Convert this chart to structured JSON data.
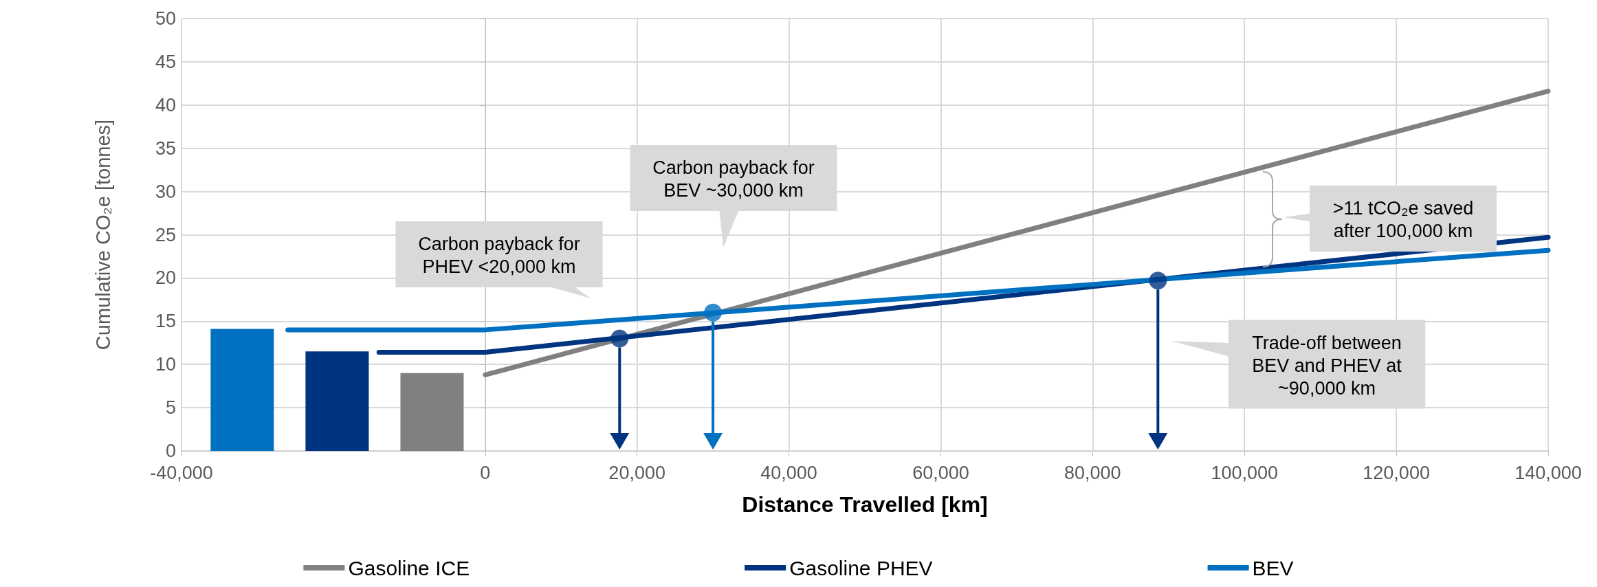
{
  "chart_data": {
    "type": "line",
    "xlabel": "Distance Travelled [km]",
    "ylabel": "Cumulative CO₂e [tonnes]",
    "xlim": [
      -40000,
      140000
    ],
    "xticks": [
      {
        "value": -40000,
        "label": "-40,000"
      },
      {
        "value": 0,
        "label": "0"
      },
      {
        "value": 20000,
        "label": "20,000"
      },
      {
        "value": 40000,
        "label": "40,000"
      },
      {
        "value": 60000,
        "label": "60,000"
      },
      {
        "value": 80000,
        "label": "80,000"
      },
      {
        "value": 100000,
        "label": "100,000"
      },
      {
        "value": 120000,
        "label": "120,000"
      },
      {
        "value": 140000,
        "label": "140,000"
      }
    ],
    "ylim": [
      0,
      50
    ],
    "yticks": [
      0,
      5,
      10,
      15,
      20,
      25,
      30,
      35,
      40,
      45,
      50
    ],
    "grid": true,
    "legend": "bottom",
    "series": [
      {
        "name": "Gasoline ICE",
        "color": "#808080",
        "x": [
          0,
          140000
        ],
        "values": [
          8.8,
          41.6
        ]
      },
      {
        "name": "Gasoline PHEV",
        "color": "#003380",
        "x": [
          -14000,
          0,
          140000
        ],
        "values": [
          11.4,
          11.4,
          24.7
        ]
      },
      {
        "name": "BEV",
        "color": "#0070c0",
        "x": [
          -26000,
          0,
          140000
        ],
        "values": [
          14.0,
          14.0,
          23.2
        ]
      },
      {
        "type": "bar",
        "x": [
          -32000,
          -19500,
          -7000
        ],
        "values": [
          14.1,
          11.5,
          9.0
        ],
        "colors": [
          "#0070c0",
          "#003380",
          "#808080"
        ]
      },
      {
        "type": "scatter",
        "marker": "circle",
        "x": [
          17700,
          30000,
          88600
        ],
        "values": [
          13.0,
          16.0,
          19.7
        ],
        "colors": [
          "#003380",
          "#0070c0",
          "#003380"
        ]
      }
    ],
    "annotations": [
      "Carbon payback for\nPHEV <20,000 km",
      "Carbon payback for\nBEV ~30,000 km",
      ">11 tCO₂e saved\nafter 100,000 km",
      "Trade-off between\nBEV and PHEV at\n~90,000 km"
    ]
  }
}
